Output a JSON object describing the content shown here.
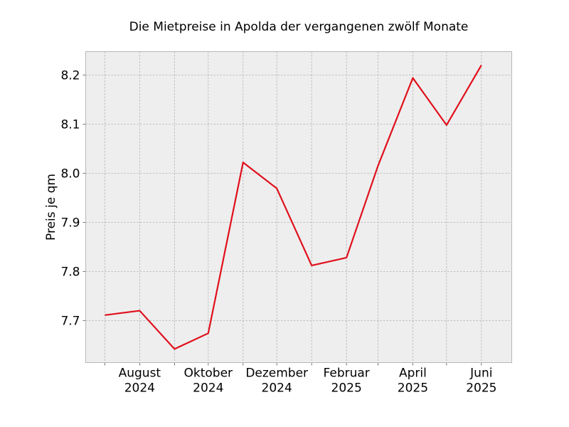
{
  "chart_data": {
    "type": "line",
    "title": "Die Mietpreise in Apolda der vergangenen zwölf Monate",
    "xlabel": "",
    "ylabel": "Preis je qm",
    "x": [
      "2024-07",
      "2024-08",
      "2024-09",
      "2024-10",
      "2024-11",
      "2024-12",
      "2025-01",
      "2025-02",
      "2025-03",
      "2025-04",
      "2025-05",
      "2025-06"
    ],
    "x_tick_labels": [
      {
        "month": "2024-08",
        "line1": "August",
        "line2": "2024"
      },
      {
        "month": "2024-10",
        "line1": "Oktober",
        "line2": "2024"
      },
      {
        "month": "2024-12",
        "line1": "Dezember",
        "line2": "2024"
      },
      {
        "month": "2025-02",
        "line1": "Februar",
        "line2": "2025"
      },
      {
        "month": "2025-04",
        "line1": "April",
        "line2": "2025"
      },
      {
        "month": "2025-06",
        "line1": "Juni",
        "line2": "2025"
      }
    ],
    "series": [
      {
        "values": [
          7.711,
          7.72,
          7.642,
          7.674,
          8.022,
          7.969,
          7.812,
          7.828,
          8.015,
          8.194,
          8.098,
          8.22
        ],
        "color": "#e0101c"
      }
    ],
    "y_ticks": [
      "7.7",
      "7.8",
      "7.9",
      "8.0",
      "8.1",
      "8.2"
    ],
    "ylim": [
      7.6143,
      8.2477
    ],
    "xlim": [
      "2024-06-14",
      "2025-06-28"
    ],
    "grid": true,
    "background_color": "#eeeeee",
    "grid_color": "#b0b0b0"
  }
}
